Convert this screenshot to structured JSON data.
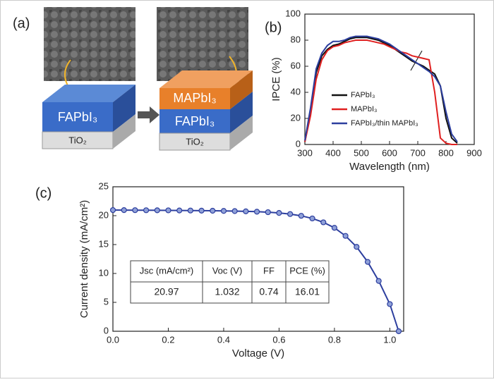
{
  "panel_a": {
    "label": "(a)",
    "left_stack": [
      "FAPbI₃",
      "TiO₂"
    ],
    "right_stack": [
      "MAPbI₃",
      "FAPbI₃",
      "TiO₂"
    ]
  },
  "chart_data": [
    {
      "type": "line",
      "panel_label": "(b)",
      "x_label": "Wavelength (nm)",
      "y_label": "IPCE (%)",
      "x": [
        300,
        320,
        340,
        360,
        380,
        400,
        420,
        440,
        460,
        480,
        500,
        520,
        540,
        560,
        580,
        600,
        620,
        640,
        660,
        680,
        700,
        720,
        740,
        760,
        780,
        800,
        820,
        840
      ],
      "series": [
        {
          "name": "FAPbI₃",
          "color": "#111111",
          "values": [
            2,
            25,
            55,
            68,
            73,
            76,
            77,
            79,
            81,
            82,
            82,
            82,
            81,
            80,
            78,
            76,
            73,
            70,
            67,
            64,
            62,
            60,
            57,
            54,
            45,
            20,
            5,
            1
          ]
        },
        {
          "name": "MAPbI₃",
          "color": "#e02020",
          "values": [
            2,
            22,
            50,
            65,
            72,
            75,
            76,
            78,
            79,
            80,
            80,
            80,
            79,
            78,
            77,
            75,
            73,
            71,
            70,
            68,
            67,
            66,
            65,
            40,
            5,
            1,
            0,
            0
          ]
        },
        {
          "name": "FAPbI₃/thin MAPbI₃",
          "color": "#2c3e9e",
          "values": [
            3,
            28,
            58,
            70,
            76,
            79,
            79,
            80,
            82,
            83,
            83,
            83,
            82,
            81,
            79,
            77,
            74,
            71,
            68,
            65,
            62,
            59,
            56,
            52,
            45,
            25,
            8,
            2
          ]
        }
      ],
      "xlim": [
        300,
        900
      ],
      "xticks": [
        300,
        400,
        500,
        600,
        700,
        800,
        900
      ],
      "ylim": [
        0,
        100
      ],
      "yticks": [
        0,
        20,
        40,
        60,
        80,
        100
      ],
      "legend": "lower-left"
    },
    {
      "type": "line",
      "markers": true,
      "panel_label": "(c)",
      "x_label": "Voltage (V)",
      "y_label": "Current density (mA/cm²)",
      "x": [
        0,
        0.04,
        0.08,
        0.12,
        0.16,
        0.2,
        0.24,
        0.28,
        0.32,
        0.36,
        0.4,
        0.44,
        0.48,
        0.52,
        0.56,
        0.6,
        0.64,
        0.68,
        0.72,
        0.76,
        0.8,
        0.84,
        0.88,
        0.92,
        0.96,
        1.0,
        1.032
      ],
      "series": [
        {
          "name": null,
          "color": "#2c3e9e",
          "values": [
            20.97,
            20.96,
            20.95,
            20.94,
            20.93,
            20.92,
            20.9,
            20.89,
            20.87,
            20.85,
            20.82,
            20.79,
            20.75,
            20.69,
            20.6,
            20.47,
            20.28,
            19.98,
            19.52,
            18.85,
            17.9,
            16.5,
            14.6,
            12.0,
            8.7,
            4.7,
            0
          ]
        }
      ],
      "xlim": [
        0,
        1.05
      ],
      "xticks": [
        {
          "value": 0,
          "label": "0.0"
        },
        0.2,
        0.4,
        0.6,
        0.8,
        {
          "value": 1,
          "label": "1.0"
        }
      ],
      "ylim": [
        0,
        25
      ],
      "yticks": [
        0,
        5,
        10,
        15,
        20,
        25
      ],
      "table": {
        "header": [
          "Jsc (mA/cm²)",
          "Voc (V)",
          "FF",
          "PCE (%)"
        ],
        "row": [
          "20.97",
          "1.032",
          "0.74",
          "16.01"
        ]
      }
    }
  ]
}
